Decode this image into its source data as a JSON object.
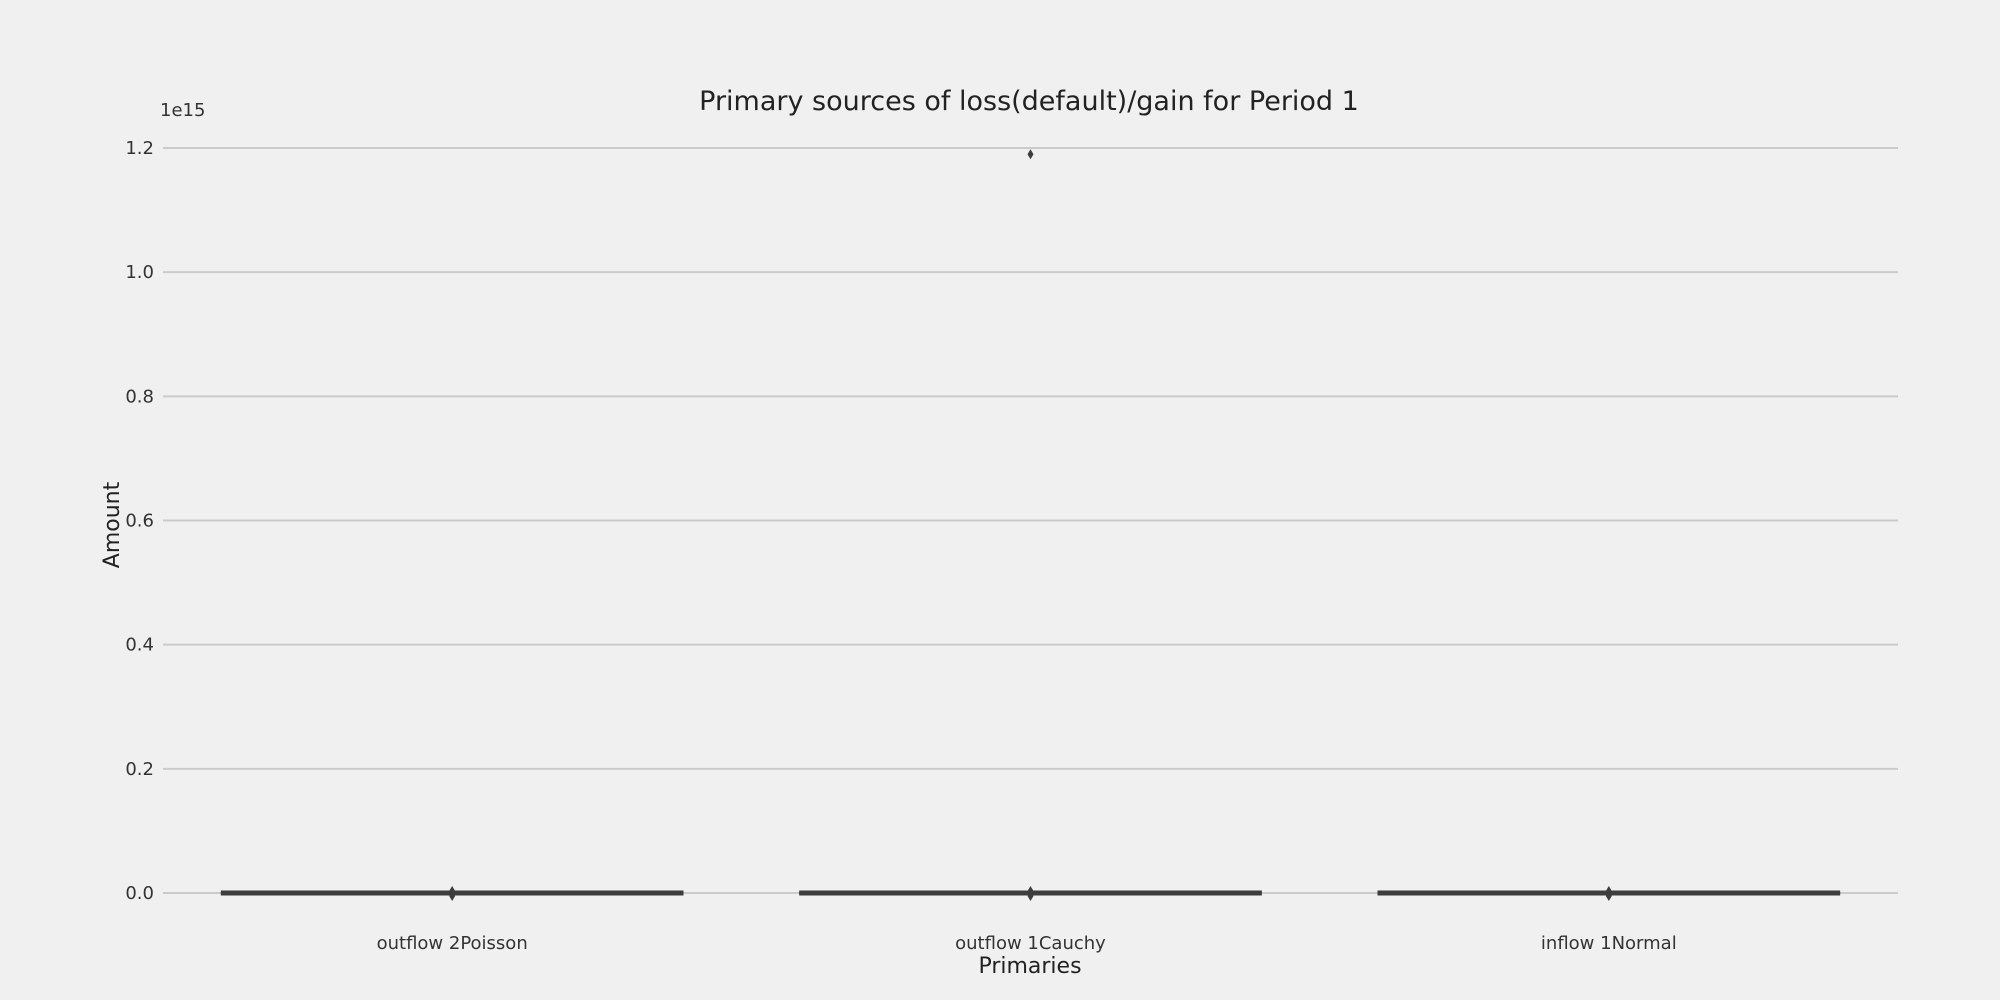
{
  "chart_data": {
    "type": "box",
    "title": "Primary sources of loss(default)/gain for Period 1",
    "xlabel": "Primaries",
    "ylabel": "Amount",
    "y_offset_label": "1e15",
    "y_scale": 1000000000000000.0,
    "ylim": [
      -0.04,
      1.22
    ],
    "yticks": [
      0.0,
      0.2,
      0.4,
      0.6,
      0.8,
      1.0,
      1.2
    ],
    "ytick_labels": [
      "0.0",
      "0.2",
      "0.4",
      "0.6",
      "0.8",
      "1.0",
      "1.2"
    ],
    "grid": "horizontal",
    "categories": [
      "outflow 2Poisson",
      "outflow 1Cauchy",
      "inflow 1Normal"
    ],
    "boxes": [
      {
        "category": "outflow 2Poisson",
        "q1": 0.0,
        "median": 0.0,
        "q3": 0.0,
        "whisker_low": 0.0,
        "whisker_high": 0.0,
        "outliers": [
          0.0,
          0.0
        ]
      },
      {
        "category": "outflow 1Cauchy",
        "q1": 0.0,
        "median": 0.0,
        "q3": 0.0,
        "whisker_low": 0.0,
        "whisker_high": 0.0,
        "outliers": [
          0.0,
          0.0,
          1.19
        ]
      },
      {
        "category": "inflow 1Normal",
        "q1": 0.0,
        "median": 0.0,
        "q3": 0.0,
        "whisker_low": 0.0,
        "whisker_high": 0.0,
        "outliers": [
          0.0,
          0.0
        ]
      }
    ],
    "colors": {
      "background": "#f0f0f0",
      "grid": "#cbcbcb",
      "box": "#3d3d3d",
      "text": "#333333"
    }
  }
}
